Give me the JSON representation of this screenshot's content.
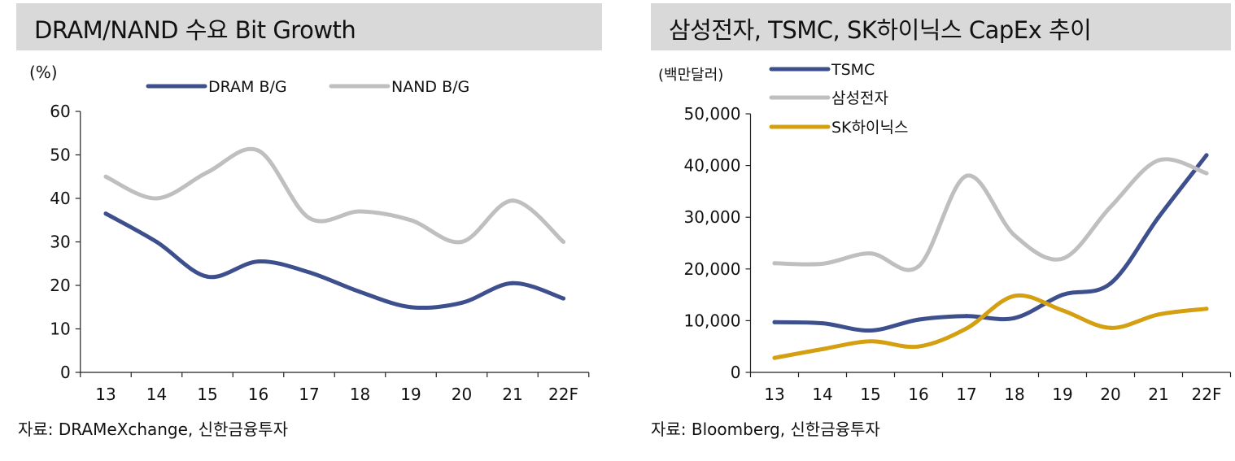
{
  "chart_data": [
    {
      "type": "line",
      "title": "DRAM/NAND 수요 Bit Growth",
      "unit_label": "(%)",
      "categories": [
        "13",
        "14",
        "15",
        "16",
        "17",
        "18",
        "19",
        "20",
        "21",
        "22F"
      ],
      "ylim": [
        0,
        60
      ],
      "yticks": [
        "0",
        "10",
        "20",
        "30",
        "40",
        "50",
        "60"
      ],
      "series": [
        {
          "name": "DRAM B/G",
          "color": "#3d4f8c",
          "values": [
            36.5,
            30,
            22,
            25.5,
            23,
            18.5,
            15,
            16,
            20.5,
            17
          ]
        },
        {
          "name": "NAND B/G",
          "color": "#bfbfbf",
          "values": [
            45,
            40,
            46,
            51,
            35.5,
            37,
            35,
            30,
            39.5,
            30
          ]
        }
      ],
      "legend_position": "top",
      "grid": false,
      "source": "자료: DRAMeXchange, 신한금융투자"
    },
    {
      "type": "line",
      "title": "삼성전자, TSMC, SK하이닉스 CapEx 추이",
      "unit_label": "(백만달러)",
      "categories": [
        "13",
        "14",
        "15",
        "16",
        "17",
        "18",
        "19",
        "20",
        "21",
        "22F"
      ],
      "ylim": [
        0,
        50000
      ],
      "yticks": [
        "0",
        "10,000",
        "20,000",
        "30,000",
        "40,000",
        "50,000"
      ],
      "series": [
        {
          "name": "TSMC",
          "color": "#3d4f8c",
          "values": [
            9700,
            9500,
            8100,
            10200,
            10900,
            10500,
            15000,
            17200,
            30000,
            42000
          ]
        },
        {
          "name": "삼성전자",
          "color": "#bfbfbf",
          "values": [
            21100,
            21000,
            23000,
            20500,
            38000,
            26500,
            22000,
            32000,
            41000,
            38500
          ]
        },
        {
          "name": "SK하이닉스",
          "color": "#d4a012",
          "values": [
            2800,
            4500,
            6000,
            5000,
            8500,
            14800,
            12000,
            8600,
            11200,
            12300
          ]
        }
      ],
      "legend_position": "top-left",
      "grid": false,
      "source": "자료: Bloomberg, 신한금융투자"
    }
  ]
}
